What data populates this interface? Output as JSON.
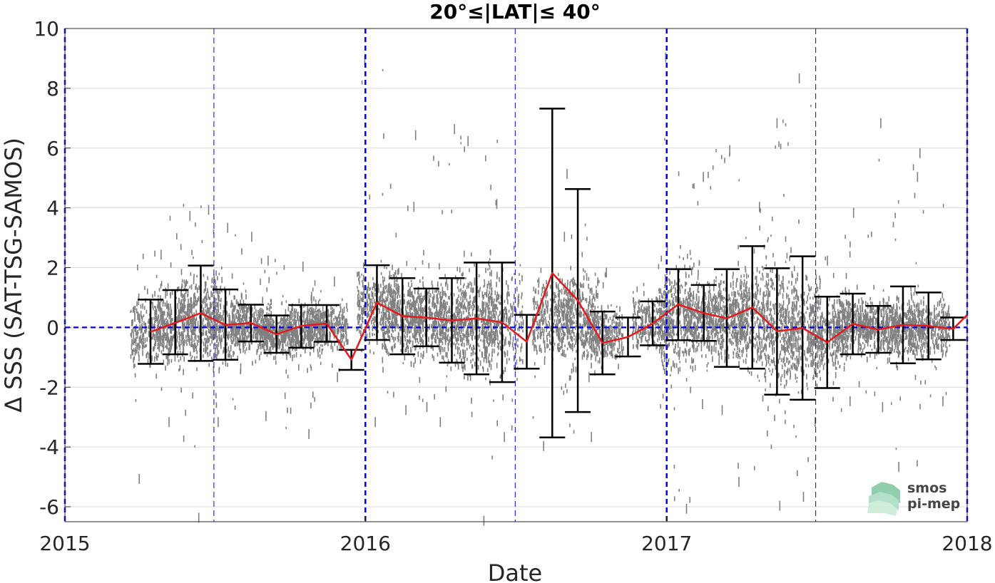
{
  "chart_data": {
    "type": "scatter",
    "title": "20°≤|LAT|≤ 40°",
    "xlabel": "Date",
    "ylabel": "Δ SSS (SAT-TSG-SAMOS)",
    "xlim": [
      "2015-01-01",
      "2018-01-01"
    ],
    "ylim": [
      -6.5,
      10
    ],
    "x_ticks": [
      {
        "label": "2015",
        "value": "2015-01-01"
      },
      {
        "label": "2016",
        "value": "2016-01-01"
      },
      {
        "label": "2017",
        "value": "2017-01-01"
      },
      {
        "label": "2018",
        "value": "2018-01-01"
      }
    ],
    "y_ticks": [
      {
        "label": "-6",
        "value": -6
      },
      {
        "label": "-4",
        "value": -4
      },
      {
        "label": "-2",
        "value": -2
      },
      {
        "label": "0",
        "value": 0
      },
      {
        "label": "2",
        "value": 2
      },
      {
        "label": "4",
        "value": 4
      },
      {
        "label": "6",
        "value": 6
      },
      {
        "label": "8",
        "value": 8
      },
      {
        "label": "10",
        "value": 10
      }
    ],
    "grid": true,
    "legend": "none",
    "colors": {
      "points": "#808080",
      "mean_line": "#e41a1c",
      "error_bars": "#000000",
      "reference_lines": "#0000ee",
      "grid": "#d9d9d9"
    },
    "reference_lines": {
      "horizontal_dashed": [
        0
      ],
      "vertical_dashed_year": [
        "2015-01-01",
        "2016-01-01",
        "2017-01-01",
        "2018-01-01"
      ],
      "vertical_dashed_midyear": [
        "2015-07-01",
        "2016-07-01",
        "2017-07-01"
      ]
    },
    "series": [
      {
        "type": "line_with_error_bars",
        "points": [
          {
            "x": "2015-04-15",
            "y": -0.15,
            "low": -1.22,
            "high": 0.93
          },
          {
            "x": "2015-05-15",
            "y": 0.15,
            "low": -0.9,
            "high": 1.25
          },
          {
            "x": "2015-06-15",
            "y": 0.48,
            "low": -1.12,
            "high": 2.07
          },
          {
            "x": "2015-07-15",
            "y": 0.08,
            "low": -1.08,
            "high": 1.27
          },
          {
            "x": "2015-08-15",
            "y": 0.15,
            "low": -0.47,
            "high": 0.76
          },
          {
            "x": "2015-09-15",
            "y": -0.23,
            "low": -0.85,
            "high": 0.4
          },
          {
            "x": "2015-10-15",
            "y": 0.05,
            "low": -0.68,
            "high": 0.75
          },
          {
            "x": "2015-11-15",
            "y": 0.13,
            "low": -0.48,
            "high": 0.75
          },
          {
            "x": "2015-12-15",
            "y": -1.08,
            "low": -1.42,
            "high": -0.75
          },
          {
            "x": "2016-01-15",
            "y": 0.83,
            "low": -0.42,
            "high": 2.08
          },
          {
            "x": "2016-02-15",
            "y": 0.38,
            "low": -0.9,
            "high": 1.65
          },
          {
            "x": "2016-03-15",
            "y": 0.33,
            "low": -0.63,
            "high": 1.3
          },
          {
            "x": "2016-04-15",
            "y": 0.23,
            "low": -1.18,
            "high": 1.65
          },
          {
            "x": "2016-05-15",
            "y": 0.3,
            "low": -1.57,
            "high": 2.17
          },
          {
            "x": "2016-06-15",
            "y": 0.17,
            "low": -1.83,
            "high": 2.17
          },
          {
            "x": "2016-07-15",
            "y": -0.48,
            "low": -1.38,
            "high": 0.42
          },
          {
            "x": "2016-08-15",
            "y": 1.82,
            "low": -3.68,
            "high": 7.32
          },
          {
            "x": "2016-09-15",
            "y": 0.9,
            "low": -2.83,
            "high": 4.63
          },
          {
            "x": "2016-10-15",
            "y": -0.52,
            "low": -1.57,
            "high": 0.53
          },
          {
            "x": "2016-11-15",
            "y": -0.32,
            "low": -0.97,
            "high": 0.33
          },
          {
            "x": "2016-12-15",
            "y": 0.13,
            "low": -0.6,
            "high": 0.87
          },
          {
            "x": "2017-01-15",
            "y": 0.77,
            "low": -0.43,
            "high": 1.95
          },
          {
            "x": "2017-02-15",
            "y": 0.48,
            "low": -0.45,
            "high": 1.42
          },
          {
            "x": "2017-03-15",
            "y": 0.3,
            "low": -1.32,
            "high": 1.95
          },
          {
            "x": "2017-04-15",
            "y": 0.67,
            "low": -1.38,
            "high": 2.72
          },
          {
            "x": "2017-05-15",
            "y": -0.13,
            "low": -2.25,
            "high": 1.98
          },
          {
            "x": "2017-06-15",
            "y": -0.02,
            "low": -2.42,
            "high": 2.38
          },
          {
            "x": "2017-07-15",
            "y": -0.5,
            "low": -2.03,
            "high": 1.03
          },
          {
            "x": "2017-08-15",
            "y": 0.12,
            "low": -0.9,
            "high": 1.13
          },
          {
            "x": "2017-09-15",
            "y": -0.07,
            "low": -0.85,
            "high": 0.72
          },
          {
            "x": "2017-10-15",
            "y": 0.08,
            "low": -1.2,
            "high": 1.37
          },
          {
            "x": "2017-11-15",
            "y": 0.05,
            "low": -1.07,
            "high": 1.17
          },
          {
            "x": "2017-12-15",
            "y": -0.05,
            "low": -0.42,
            "high": 0.33
          },
          {
            "x": "2018-01-01",
            "y": 0.42
          }
        ]
      },
      {
        "type": "scatter",
        "description": "gray individual match-up points (approximate distribution)",
        "clusters": [
          {
            "x": "2015-04-15",
            "center": -0.1,
            "spread": 0.8,
            "min": -4.9,
            "max": 2.6
          },
          {
            "x": "2015-05-15",
            "center": 0.2,
            "spread": 0.8,
            "min": -3.0,
            "max": 3.9
          },
          {
            "x": "2015-06-15",
            "center": 0.4,
            "spread": 1.0,
            "min": -6.2,
            "max": 4.1
          },
          {
            "x": "2015-07-15",
            "center": 0.1,
            "spread": 0.8,
            "min": -3.0,
            "max": 3.5
          },
          {
            "x": "2015-08-15",
            "center": 0.1,
            "spread": 0.5,
            "min": -1.2,
            "max": 3.2
          },
          {
            "x": "2015-09-15",
            "center": -0.2,
            "spread": 0.5,
            "min": -2.8,
            "max": 2.4
          },
          {
            "x": "2015-10-15",
            "center": 0.0,
            "spread": 0.6,
            "min": -3.4,
            "max": 2.2
          },
          {
            "x": "2015-11-15",
            "center": 0.1,
            "spread": 0.5,
            "min": -1.5,
            "max": 1.7
          },
          {
            "x": "2016-01-15",
            "center": 0.8,
            "spread": 0.9,
            "min": -3.0,
            "max": 9.1
          },
          {
            "x": "2016-02-15",
            "center": 0.4,
            "spread": 0.9,
            "min": -2.6,
            "max": 6.6
          },
          {
            "x": "2016-03-15",
            "center": 0.3,
            "spread": 0.8,
            "min": -2.5,
            "max": 4.2
          },
          {
            "x": "2016-04-15",
            "center": 0.2,
            "spread": 1.0,
            "min": -3.0,
            "max": 6.8
          },
          {
            "x": "2016-05-15",
            "center": 0.3,
            "spread": 1.2,
            "min": -6.3,
            "max": 6.4
          },
          {
            "x": "2016-06-15",
            "center": 0.2,
            "spread": 1.1,
            "min": -3.5,
            "max": 4.3
          },
          {
            "x": "2016-08-15",
            "center": 0.3,
            "spread": 0.9,
            "min": -3.8,
            "max": 3.2
          },
          {
            "x": "2016-09-15",
            "center": 0.5,
            "spread": 1.0,
            "min": -3.5,
            "max": 5.3
          },
          {
            "x": "2016-10-15",
            "center": -0.2,
            "spread": 0.6,
            "min": -1.5,
            "max": 2.0
          },
          {
            "x": "2016-12-15",
            "center": 0.2,
            "spread": 0.6,
            "min": -0.6,
            "max": 1.7
          },
          {
            "x": "2017-01-15",
            "center": 0.5,
            "spread": 1.4,
            "min": -5.9,
            "max": 9.2
          },
          {
            "x": "2017-02-15",
            "center": 0.4,
            "spread": 0.8,
            "min": -2.4,
            "max": 5.2
          },
          {
            "x": "2017-03-15",
            "center": 0.3,
            "spread": 0.9,
            "min": -2.6,
            "max": 6.1
          },
          {
            "x": "2017-04-15",
            "center": 0.5,
            "spread": 1.3,
            "min": -5.0,
            "max": 4.2
          },
          {
            "x": "2017-05-15",
            "center": 0.0,
            "spread": 1.4,
            "min": -5.8,
            "max": 7.0
          },
          {
            "x": "2017-06-15",
            "center": 0.0,
            "spread": 1.3,
            "min": -5.5,
            "max": 8.5
          },
          {
            "x": "2017-07-15",
            "center": -0.3,
            "spread": 0.8,
            "min": -3.0,
            "max": 2.4
          },
          {
            "x": "2017-08-15",
            "center": 0.2,
            "spread": 0.6,
            "min": -2.3,
            "max": 4.0
          },
          {
            "x": "2017-09-15",
            "center": 0.0,
            "spread": 0.6,
            "min": -2.5,
            "max": 7.0
          },
          {
            "x": "2017-10-15",
            "center": 0.1,
            "spread": 0.7,
            "min": -4.5,
            "max": 5.2
          },
          {
            "x": "2017-11-15",
            "center": 0.0,
            "spread": 0.6,
            "min": -2.3,
            "max": 6.0
          }
        ]
      }
    ]
  },
  "watermark": {
    "line1": "smos",
    "line2": "pi-mep",
    "color": "#6cbf94"
  }
}
